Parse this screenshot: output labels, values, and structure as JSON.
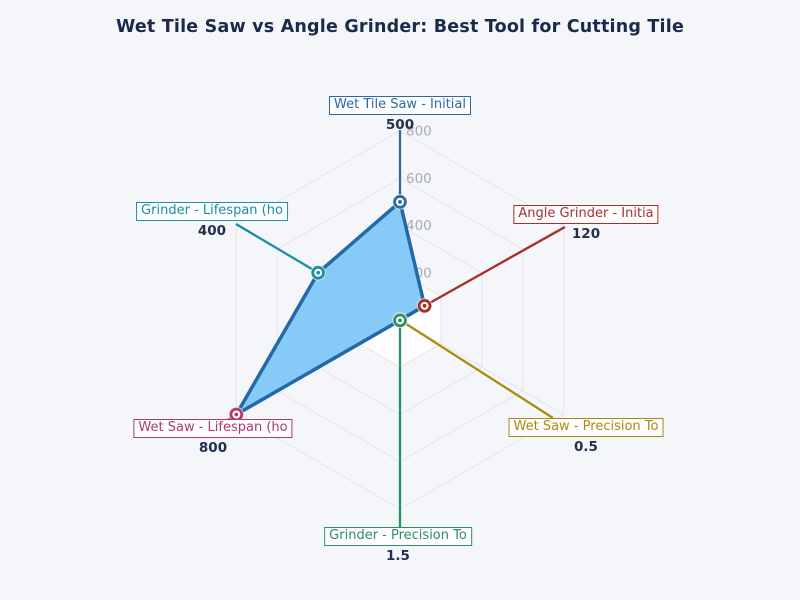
{
  "title": "Wet Tile Saw vs Angle Grinder: Best Tool for Cutting Tile",
  "chart_data": {
    "type": "radar",
    "r_max": 800,
    "r_ticks": [
      200,
      400,
      600,
      800
    ],
    "axes": [
      {
        "label": "Wet Tile Saw - Initial",
        "value": 500,
        "value_label": "500",
        "color": "#2d6a9f"
      },
      {
        "label": "Angle Grinder - Initia",
        "value": 120,
        "value_label": "120",
        "color": "#a5302a"
      },
      {
        "label": "Wet Saw - Precision To",
        "value": 0.5,
        "value_label": "0.5",
        "color": "#ab8b0a"
      },
      {
        "label": "Grinder - Precision To",
        "value": 1.5,
        "value_label": "1.5",
        "color": "#2e8f63"
      },
      {
        "label": "Wet Saw - Lifespan (ho",
        "value": 800,
        "value_label": "800",
        "color": "#ab3c6d"
      },
      {
        "label": "Grinder - Lifespan (ho",
        "value": 400,
        "value_label": "400",
        "color": "#1b8fa3"
      }
    ],
    "series_fill": "#80c8f8",
    "series_stroke": "#2368a8",
    "tick_color": "#a7abb5",
    "grid_color": "#e2e5ec",
    "inner_fill": "#fdfdff",
    "value_text_color": "#22304e",
    "title_color": "#1b2a4a"
  }
}
